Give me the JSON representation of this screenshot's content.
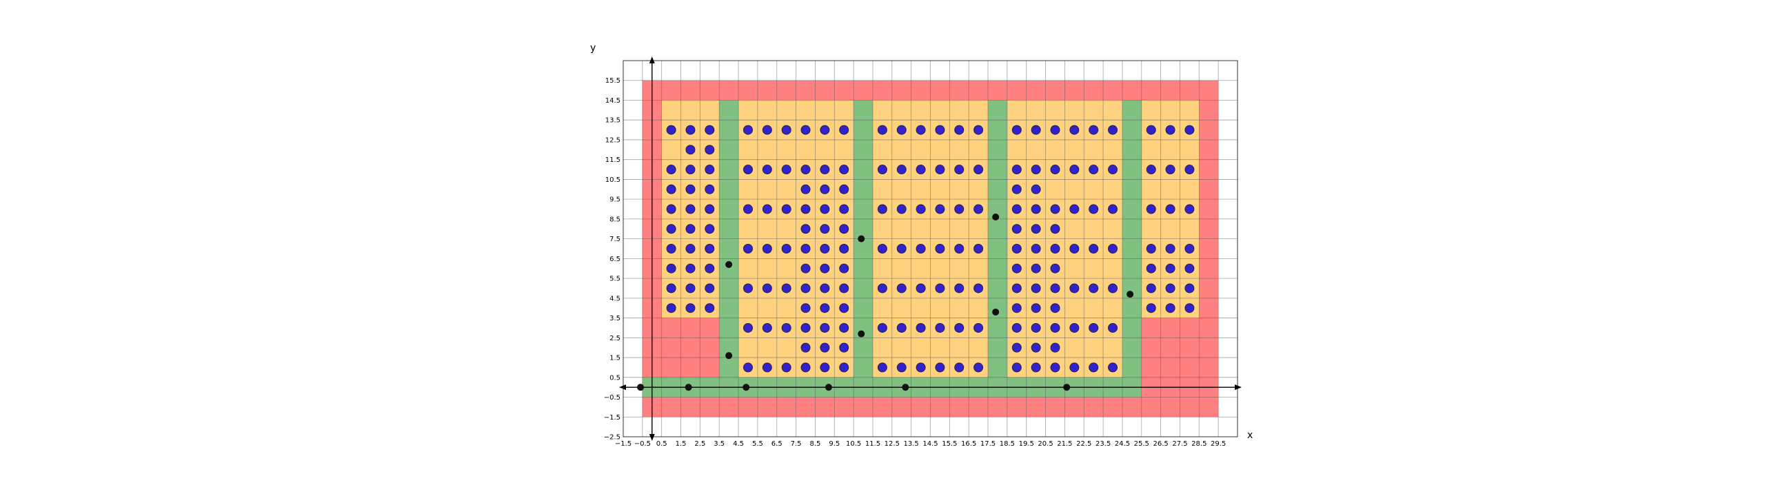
{
  "chart_data": {
    "type": "scatter",
    "title": "",
    "xlabel": "x",
    "ylabel": "y",
    "xlim": [
      -1.5,
      30.5
    ],
    "ylim": [
      -2.5,
      16.5
    ],
    "x_ticks": [
      "-1.5",
      "-0.5",
      "0.5",
      "1.5",
      "2.5",
      "3.5",
      "4.5",
      "5.5",
      "6.5",
      "7.5",
      "8.5",
      "9.5",
      "10.5",
      "11.5",
      "12.5",
      "13.5",
      "14.5",
      "15.5",
      "16.5",
      "17.5",
      "18.5",
      "19.5",
      "20.5",
      "21.5",
      "22.5",
      "23.5",
      "24.5",
      "25.5",
      "26.5",
      "27.5",
      "28.5",
      "29.5"
    ],
    "y_ticks": [
      "-2.5",
      "-1.5",
      "-0.5",
      "0.5",
      "1.5",
      "2.5",
      "3.5",
      "4.5",
      "5.5",
      "6.5",
      "7.5",
      "8.5",
      "9.5",
      "10.5",
      "11.5",
      "12.5",
      "13.5",
      "14.5",
      "15.5"
    ],
    "grid": true,
    "colors": {
      "boundary": "#ff8080",
      "free": "#ffd27f",
      "corridor": "#80c080",
      "marker": "#3322cc",
      "marker_edge": "#222244",
      "waypoint": "#111111"
    },
    "regions": [
      {
        "kind": "boundary",
        "x": [
          -0.5,
          29.5
        ],
        "y": [
          -1.5,
          15.5
        ]
      },
      {
        "kind": "free",
        "x": [
          0.5,
          3.5
        ],
        "y": [
          3.5,
          14.5
        ]
      },
      {
        "kind": "free",
        "x": [
          4.5,
          10.5
        ],
        "y": [
          0.5,
          14.5
        ]
      },
      {
        "kind": "free",
        "x": [
          11.5,
          17.5
        ],
        "y": [
          0.5,
          14.5
        ]
      },
      {
        "kind": "free",
        "x": [
          18.5,
          24.5
        ],
        "y": [
          0.5,
          14.5
        ]
      },
      {
        "kind": "free",
        "x": [
          25.5,
          28.5
        ],
        "y": [
          3.5,
          14.5
        ]
      },
      {
        "kind": "corridor",
        "x": [
          -0.5,
          25.5
        ],
        "y": [
          -0.5,
          0.5
        ]
      },
      {
        "kind": "corridor",
        "x": [
          3.5,
          4.5
        ],
        "y": [
          0.5,
          14.5
        ]
      },
      {
        "kind": "corridor",
        "x": [
          10.5,
          11.5
        ],
        "y": [
          0.5,
          14.5
        ]
      },
      {
        "kind": "corridor",
        "x": [
          17.5,
          18.5
        ],
        "y": [
          0.5,
          14.5
        ]
      },
      {
        "kind": "corridor",
        "x": [
          24.5,
          25.5
        ],
        "y": [
          0.5,
          14.5
        ]
      }
    ],
    "series": [
      {
        "role": "items",
        "points": [
          [
            1,
            13
          ],
          [
            2,
            13
          ],
          [
            3,
            13
          ],
          [
            2,
            12
          ],
          [
            3,
            12
          ],
          [
            1,
            11
          ],
          [
            2,
            11
          ],
          [
            3,
            11
          ],
          [
            1,
            10
          ],
          [
            2,
            10
          ],
          [
            3,
            10
          ],
          [
            1,
            9
          ],
          [
            2,
            9
          ],
          [
            3,
            9
          ],
          [
            1,
            8
          ],
          [
            2,
            8
          ],
          [
            3,
            8
          ],
          [
            1,
            7
          ],
          [
            2,
            7
          ],
          [
            3,
            7
          ],
          [
            1,
            6
          ],
          [
            2,
            6
          ],
          [
            3,
            6
          ],
          [
            1,
            5
          ],
          [
            2,
            5
          ],
          [
            3,
            5
          ],
          [
            1,
            4
          ],
          [
            2,
            4
          ],
          [
            3,
            4
          ],
          [
            5,
            13
          ],
          [
            6,
            13
          ],
          [
            7,
            13
          ],
          [
            8,
            13
          ],
          [
            9,
            13
          ],
          [
            10,
            13
          ],
          [
            5,
            11
          ],
          [
            6,
            11
          ],
          [
            7,
            11
          ],
          [
            8,
            11
          ],
          [
            9,
            11
          ],
          [
            10,
            11
          ],
          [
            8,
            10
          ],
          [
            9,
            10
          ],
          [
            10,
            10
          ],
          [
            5,
            9
          ],
          [
            6,
            9
          ],
          [
            7,
            9
          ],
          [
            8,
            9
          ],
          [
            9,
            9
          ],
          [
            10,
            9
          ],
          [
            8,
            8
          ],
          [
            9,
            8
          ],
          [
            10,
            8
          ],
          [
            5,
            7
          ],
          [
            6,
            7
          ],
          [
            7,
            7
          ],
          [
            8,
            7
          ],
          [
            9,
            7
          ],
          [
            10,
            7
          ],
          [
            8,
            6
          ],
          [
            9,
            6
          ],
          [
            10,
            6
          ],
          [
            5,
            5
          ],
          [
            6,
            5
          ],
          [
            7,
            5
          ],
          [
            8,
            5
          ],
          [
            9,
            5
          ],
          [
            10,
            5
          ],
          [
            8,
            4
          ],
          [
            9,
            4
          ],
          [
            10,
            4
          ],
          [
            5,
            3
          ],
          [
            6,
            3
          ],
          [
            7,
            3
          ],
          [
            8,
            3
          ],
          [
            9,
            3
          ],
          [
            10,
            3
          ],
          [
            8,
            2
          ],
          [
            9,
            2
          ],
          [
            10,
            2
          ],
          [
            5,
            1
          ],
          [
            6,
            1
          ],
          [
            7,
            1
          ],
          [
            8,
            1
          ],
          [
            9,
            1
          ],
          [
            10,
            1
          ],
          [
            12,
            13
          ],
          [
            13,
            13
          ],
          [
            14,
            13
          ],
          [
            15,
            13
          ],
          [
            16,
            13
          ],
          [
            17,
            13
          ],
          [
            12,
            11
          ],
          [
            13,
            11
          ],
          [
            14,
            11
          ],
          [
            15,
            11
          ],
          [
            16,
            11
          ],
          [
            17,
            11
          ],
          [
            12,
            9
          ],
          [
            13,
            9
          ],
          [
            14,
            9
          ],
          [
            15,
            9
          ],
          [
            16,
            9
          ],
          [
            17,
            9
          ],
          [
            12,
            7
          ],
          [
            13,
            7
          ],
          [
            14,
            7
          ],
          [
            15,
            7
          ],
          [
            16,
            7
          ],
          [
            17,
            7
          ],
          [
            12,
            5
          ],
          [
            13,
            5
          ],
          [
            14,
            5
          ],
          [
            15,
            5
          ],
          [
            16,
            5
          ],
          [
            17,
            5
          ],
          [
            12,
            3
          ],
          [
            13,
            3
          ],
          [
            14,
            3
          ],
          [
            15,
            3
          ],
          [
            16,
            3
          ],
          [
            17,
            3
          ],
          [
            12,
            1
          ],
          [
            13,
            1
          ],
          [
            14,
            1
          ],
          [
            15,
            1
          ],
          [
            16,
            1
          ],
          [
            17,
            1
          ],
          [
            19,
            13
          ],
          [
            20,
            13
          ],
          [
            21,
            13
          ],
          [
            22,
            13
          ],
          [
            23,
            13
          ],
          [
            24,
            13
          ],
          [
            19,
            11
          ],
          [
            20,
            11
          ],
          [
            21,
            11
          ],
          [
            22,
            11
          ],
          [
            23,
            11
          ],
          [
            24,
            11
          ],
          [
            19,
            10
          ],
          [
            20,
            10
          ],
          [
            19,
            9
          ],
          [
            20,
            9
          ],
          [
            21,
            9
          ],
          [
            22,
            9
          ],
          [
            23,
            9
          ],
          [
            24,
            9
          ],
          [
            19,
            8
          ],
          [
            20,
            8
          ],
          [
            21,
            8
          ],
          [
            19,
            7
          ],
          [
            20,
            7
          ],
          [
            21,
            7
          ],
          [
            22,
            7
          ],
          [
            23,
            7
          ],
          [
            24,
            7
          ],
          [
            19,
            6
          ],
          [
            20,
            6
          ],
          [
            21,
            6
          ],
          [
            19,
            5
          ],
          [
            20,
            5
          ],
          [
            21,
            5
          ],
          [
            22,
            5
          ],
          [
            23,
            5
          ],
          [
            24,
            5
          ],
          [
            19,
            4
          ],
          [
            20,
            4
          ],
          [
            21,
            4
          ],
          [
            19,
            3
          ],
          [
            20,
            3
          ],
          [
            21,
            3
          ],
          [
            22,
            3
          ],
          [
            23,
            3
          ],
          [
            24,
            3
          ],
          [
            19,
            2
          ],
          [
            20,
            2
          ],
          [
            21,
            2
          ],
          [
            19,
            1
          ],
          [
            20,
            1
          ],
          [
            21,
            1
          ],
          [
            22,
            1
          ],
          [
            23,
            1
          ],
          [
            24,
            1
          ],
          [
            26,
            13
          ],
          [
            27,
            13
          ],
          [
            28,
            13
          ],
          [
            26,
            11
          ],
          [
            27,
            11
          ],
          [
            28,
            11
          ],
          [
            26,
            9
          ],
          [
            27,
            9
          ],
          [
            28,
            9
          ],
          [
            26,
            7
          ],
          [
            27,
            7
          ],
          [
            28,
            7
          ],
          [
            26,
            6
          ],
          [
            27,
            6
          ],
          [
            28,
            6
          ],
          [
            26,
            5
          ],
          [
            27,
            5
          ],
          [
            28,
            5
          ],
          [
            26,
            4
          ],
          [
            27,
            4
          ],
          [
            28,
            4
          ]
        ]
      },
      {
        "role": "waypoints",
        "points": [
          [
            -0.6,
            0
          ],
          [
            1.9,
            0
          ],
          [
            4.9,
            0
          ],
          [
            9.2,
            0
          ],
          [
            13.2,
            0
          ],
          [
            21.6,
            0
          ],
          [
            4.0,
            6.2
          ],
          [
            4.0,
            1.6
          ],
          [
            10.9,
            7.5
          ],
          [
            10.9,
            2.7
          ],
          [
            17.9,
            8.6
          ],
          [
            17.9,
            3.8
          ],
          [
            24.9,
            4.7
          ]
        ]
      }
    ]
  }
}
